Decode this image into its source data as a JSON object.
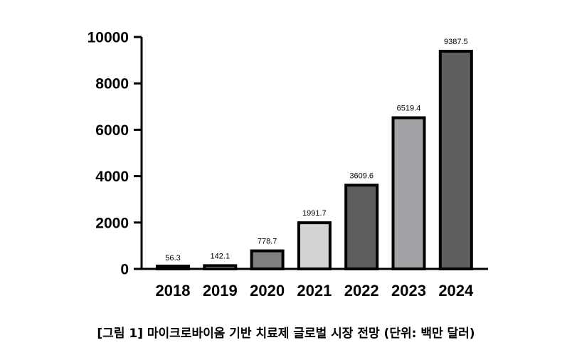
{
  "caption": "[그림 1] 마이크로바이옴 기반 치료제 글로벌 시장 전망 (단위: 백만 달러)",
  "chart_data": {
    "type": "bar",
    "categories": [
      "2018",
      "2019",
      "2020",
      "2021",
      "2022",
      "2023",
      "2024"
    ],
    "values": [
      56.3,
      142.1,
      778.7,
      1991.7,
      3609.6,
      6519.4,
      9387.5
    ],
    "value_labels": [
      "56.3",
      "142.1",
      "778.7",
      "1991.7",
      "3609.6",
      "6519.4",
      "9387.5"
    ],
    "bar_colors": [
      "#ffffff",
      "#ffffff",
      "#808080",
      "#d3d3d3",
      "#5e5e5e",
      "#a3a3a7",
      "#5f5f5f"
    ],
    "ylim": [
      0,
      10000
    ],
    "yticks": [
      "0",
      "2000",
      "4000",
      "6000",
      "8000",
      "10000"
    ],
    "ytick_values": [
      0,
      2000,
      4000,
      6000,
      8000,
      10000
    ],
    "title": "",
    "xlabel": "",
    "ylabel": "",
    "grid": false,
    "legend": "none"
  }
}
